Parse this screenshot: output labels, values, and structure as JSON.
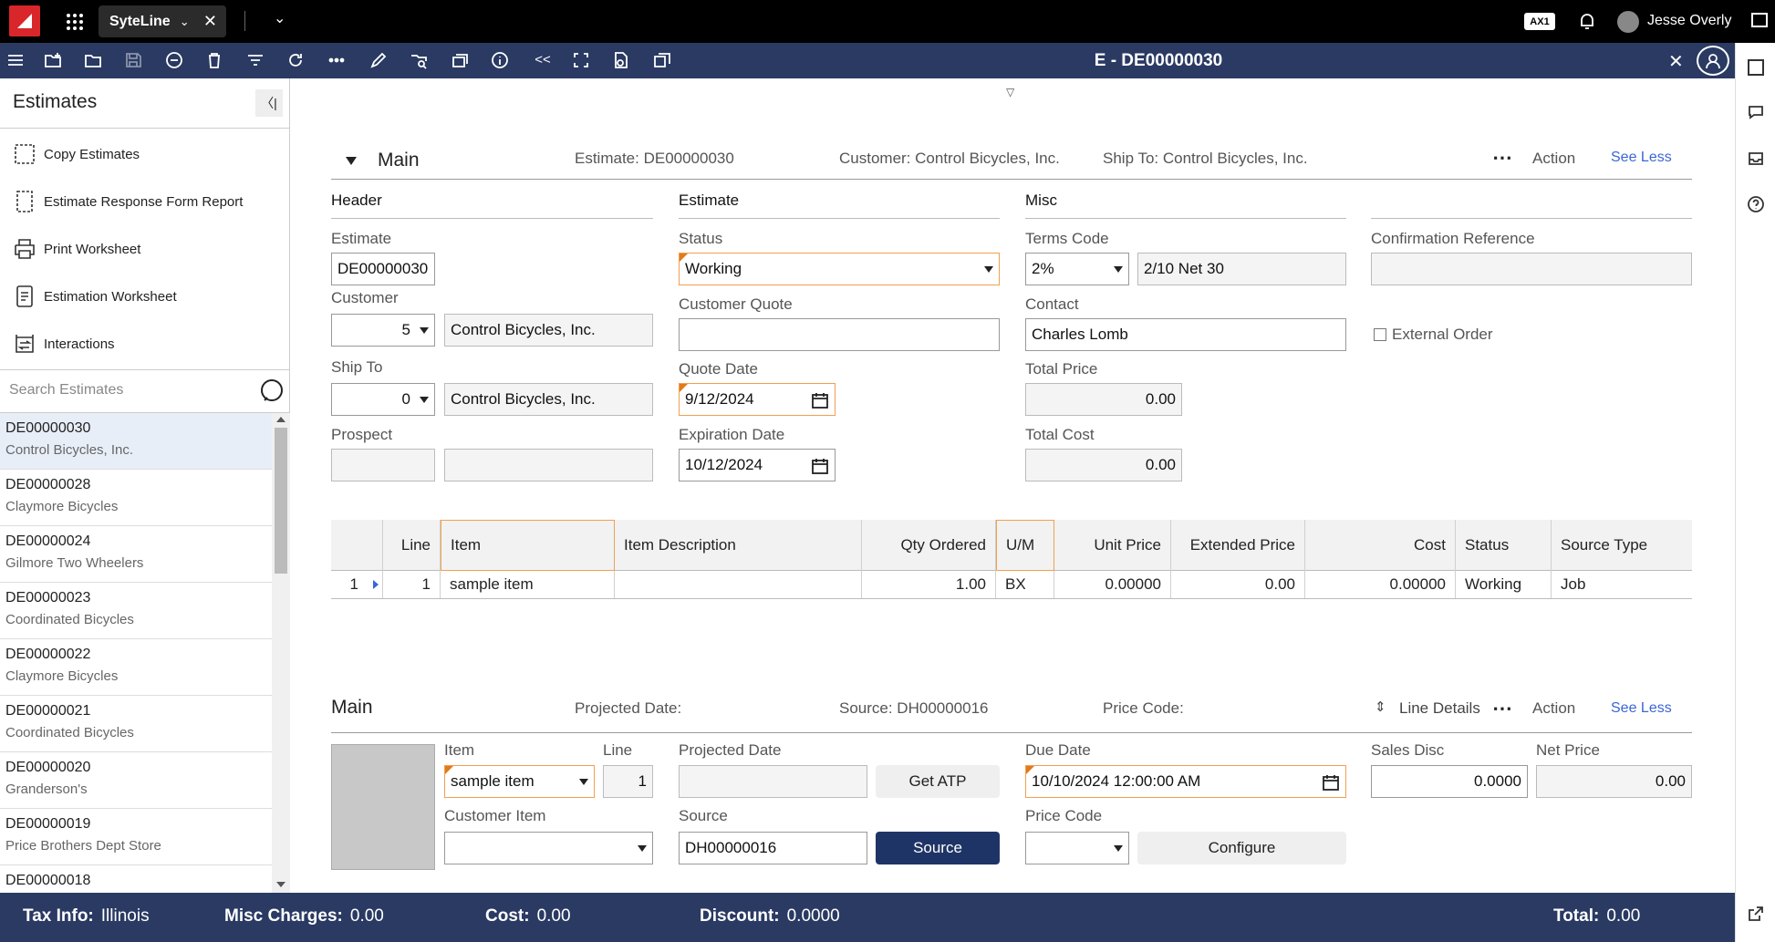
{
  "app": {
    "name": "SyteLine",
    "badge": "AX1",
    "user": "Jesse Overly"
  },
  "toolbar": {
    "form_title": "E - DE00000030"
  },
  "sidebar": {
    "title": "Estimates",
    "actions": [
      {
        "label": "Copy Estimates",
        "icon": "copy-icon"
      },
      {
        "label": "Estimate Response Form Report",
        "icon": "report-icon"
      },
      {
        "label": "Print Worksheet",
        "icon": "print-icon"
      },
      {
        "label": "Estimation Worksheet",
        "icon": "worksheet-icon"
      },
      {
        "label": "Interactions",
        "icon": "interactions-icon"
      }
    ],
    "search_placeholder": "Search Estimates",
    "records": [
      {
        "id": "DE00000030",
        "name": "Control Bicycles, Inc."
      },
      {
        "id": "DE00000028",
        "name": "Claymore Bicycles"
      },
      {
        "id": "DE00000024",
        "name": "Gilmore Two Wheelers"
      },
      {
        "id": "DE00000023",
        "name": "Coordinated Bicycles"
      },
      {
        "id": "DE00000022",
        "name": "Claymore Bicycles"
      },
      {
        "id": "DE00000021",
        "name": "Coordinated Bicycles"
      },
      {
        "id": "DE00000020",
        "name": "Granderson's"
      },
      {
        "id": "DE00000019",
        "name": "Price Brothers Dept Store"
      },
      {
        "id": "DE00000018",
        "name": ""
      }
    ]
  },
  "main": {
    "section_title": "Main",
    "summary_estimate": "Estimate: DE00000030",
    "summary_customer": "Customer: Control Bicycles, Inc.",
    "summary_shipto": "Ship To: Control Bicycles, Inc.",
    "action_label": "Action",
    "see_less": "See Less",
    "header_col": "Header",
    "estimate_col": "Estimate",
    "misc_col": "Misc",
    "labels": {
      "estimate": "Estimate",
      "customer": "Customer",
      "ship_to": "Ship To",
      "prospect": "Prospect",
      "status": "Status",
      "customer_quote": "Customer Quote",
      "quote_date": "Quote Date",
      "expiration_date": "Expiration Date",
      "terms_code": "Terms Code",
      "contact": "Contact",
      "total_price": "Total Price",
      "total_cost": "Total Cost",
      "confirmation_reference": "Confirmation Reference",
      "external_order": "External Order"
    },
    "values": {
      "estimate": "DE00000030",
      "customer_num": "5",
      "customer_name": "Control Bicycles, Inc.",
      "ship_to_num": "0",
      "ship_to_name": "Control Bicycles, Inc.",
      "prospect_num": "",
      "prospect_name": "",
      "status": "Working",
      "customer_quote": "",
      "quote_date": "9/12/2024",
      "expiration_date": "10/12/2024",
      "terms_code": "2%",
      "terms_desc": "2/10 Net 30",
      "contact": "Charles Lomb",
      "total_price": "0.00",
      "total_cost": "0.00",
      "confirmation_reference": ""
    }
  },
  "grid": {
    "columns": [
      "",
      "Line",
      "Item",
      "Item Description",
      "Qty Ordered",
      "U/M",
      "Unit Price",
      "Extended Price",
      "Cost",
      "Status",
      "Source Type"
    ],
    "rows": [
      {
        "row": "1",
        "line": "1",
        "item": "sample item",
        "desc": "",
        "qty": "1.00",
        "um": "BX",
        "unit_price": "0.00000",
        "ext_price": "0.00",
        "cost": "0.00000",
        "status": "Working",
        "source_type": "Job"
      }
    ]
  },
  "line": {
    "title": "Main",
    "summary_projected": "Projected Date:",
    "summary_source": "Source: DH00000016",
    "summary_price_code": "Price Code:",
    "line_details": "Line Details",
    "action_label": "Action",
    "see_less": "See Less",
    "labels": {
      "item": "Item",
      "line": "Line",
      "projected_date": "Projected Date",
      "due_date": "Due Date",
      "sales_disc": "Sales Disc",
      "net_price": "Net Price",
      "customer_item": "Customer Item",
      "source": "Source",
      "price_code": "Price Code"
    },
    "values": {
      "item": "sample item",
      "line": "1",
      "projected_date": "",
      "due_date": "10/10/2024 12:00:00 AM",
      "sales_disc": "0.0000",
      "net_price": "0.00",
      "customer_item": "",
      "source": "DH00000016",
      "price_code": ""
    },
    "buttons": {
      "get_atp": "Get ATP",
      "source": "Source",
      "configure": "Configure"
    }
  },
  "footer": {
    "tax_label": "Tax Info:",
    "tax_value": "Illinois",
    "misc_label": "Misc Charges:",
    "misc_value": "0.00",
    "cost_label": "Cost:",
    "cost_value": "0.00",
    "discount_label": "Discount:",
    "discount_value": "0.0000",
    "total_label": "Total:",
    "total_value": "0.00"
  },
  "colors": {
    "toolbar": "#2a3a63",
    "accent": "#e07a1a",
    "primary_button": "#1f3466",
    "topbar": "#000000"
  }
}
